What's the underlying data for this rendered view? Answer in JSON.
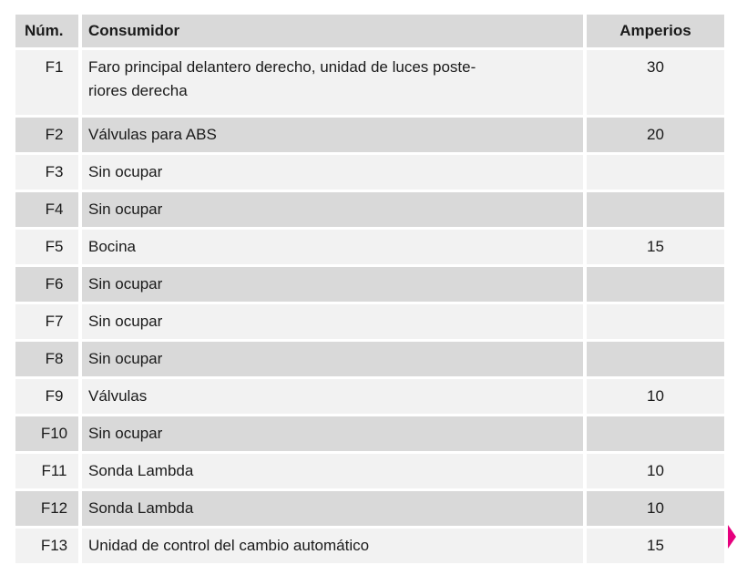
{
  "page": {
    "background": "#ffffff"
  },
  "colors": {
    "row_dark": "#d9d9d9",
    "row_light": "#f2f2f2",
    "text": "#1a1a1a",
    "accent_magenta": "#e6007e"
  },
  "table": {
    "headers": {
      "num": "Núm.",
      "consumer": "Consumidor",
      "amps": "Amperios"
    },
    "rows": [
      {
        "num": "F1",
        "consumer": "Faro principal delantero derecho, unidad de luces poste-\nriores derecha",
        "amps": "30"
      },
      {
        "num": "F2",
        "consumer": "Válvulas para ABS",
        "amps": "20"
      },
      {
        "num": "F3",
        "consumer": "Sin ocupar",
        "amps": ""
      },
      {
        "num": "F4",
        "consumer": "Sin ocupar",
        "amps": ""
      },
      {
        "num": "F5",
        "consumer": "Bocina",
        "amps": "15"
      },
      {
        "num": "F6",
        "consumer": "Sin ocupar",
        "amps": ""
      },
      {
        "num": "F7",
        "consumer": "Sin ocupar",
        "amps": ""
      },
      {
        "num": "F8",
        "consumer": "Sin ocupar",
        "amps": ""
      },
      {
        "num": "F9",
        "consumer": "Válvulas",
        "amps": "10"
      },
      {
        "num": "F10",
        "consumer": "Sin ocupar",
        "amps": ""
      },
      {
        "num": "F11",
        "consumer": "Sonda Lambda",
        "amps": "10"
      },
      {
        "num": "F12",
        "consumer": "Sonda Lambda",
        "amps": "10"
      },
      {
        "num": "F13",
        "consumer": "Unidad de control del cambio automático",
        "amps": "15"
      }
    ]
  }
}
